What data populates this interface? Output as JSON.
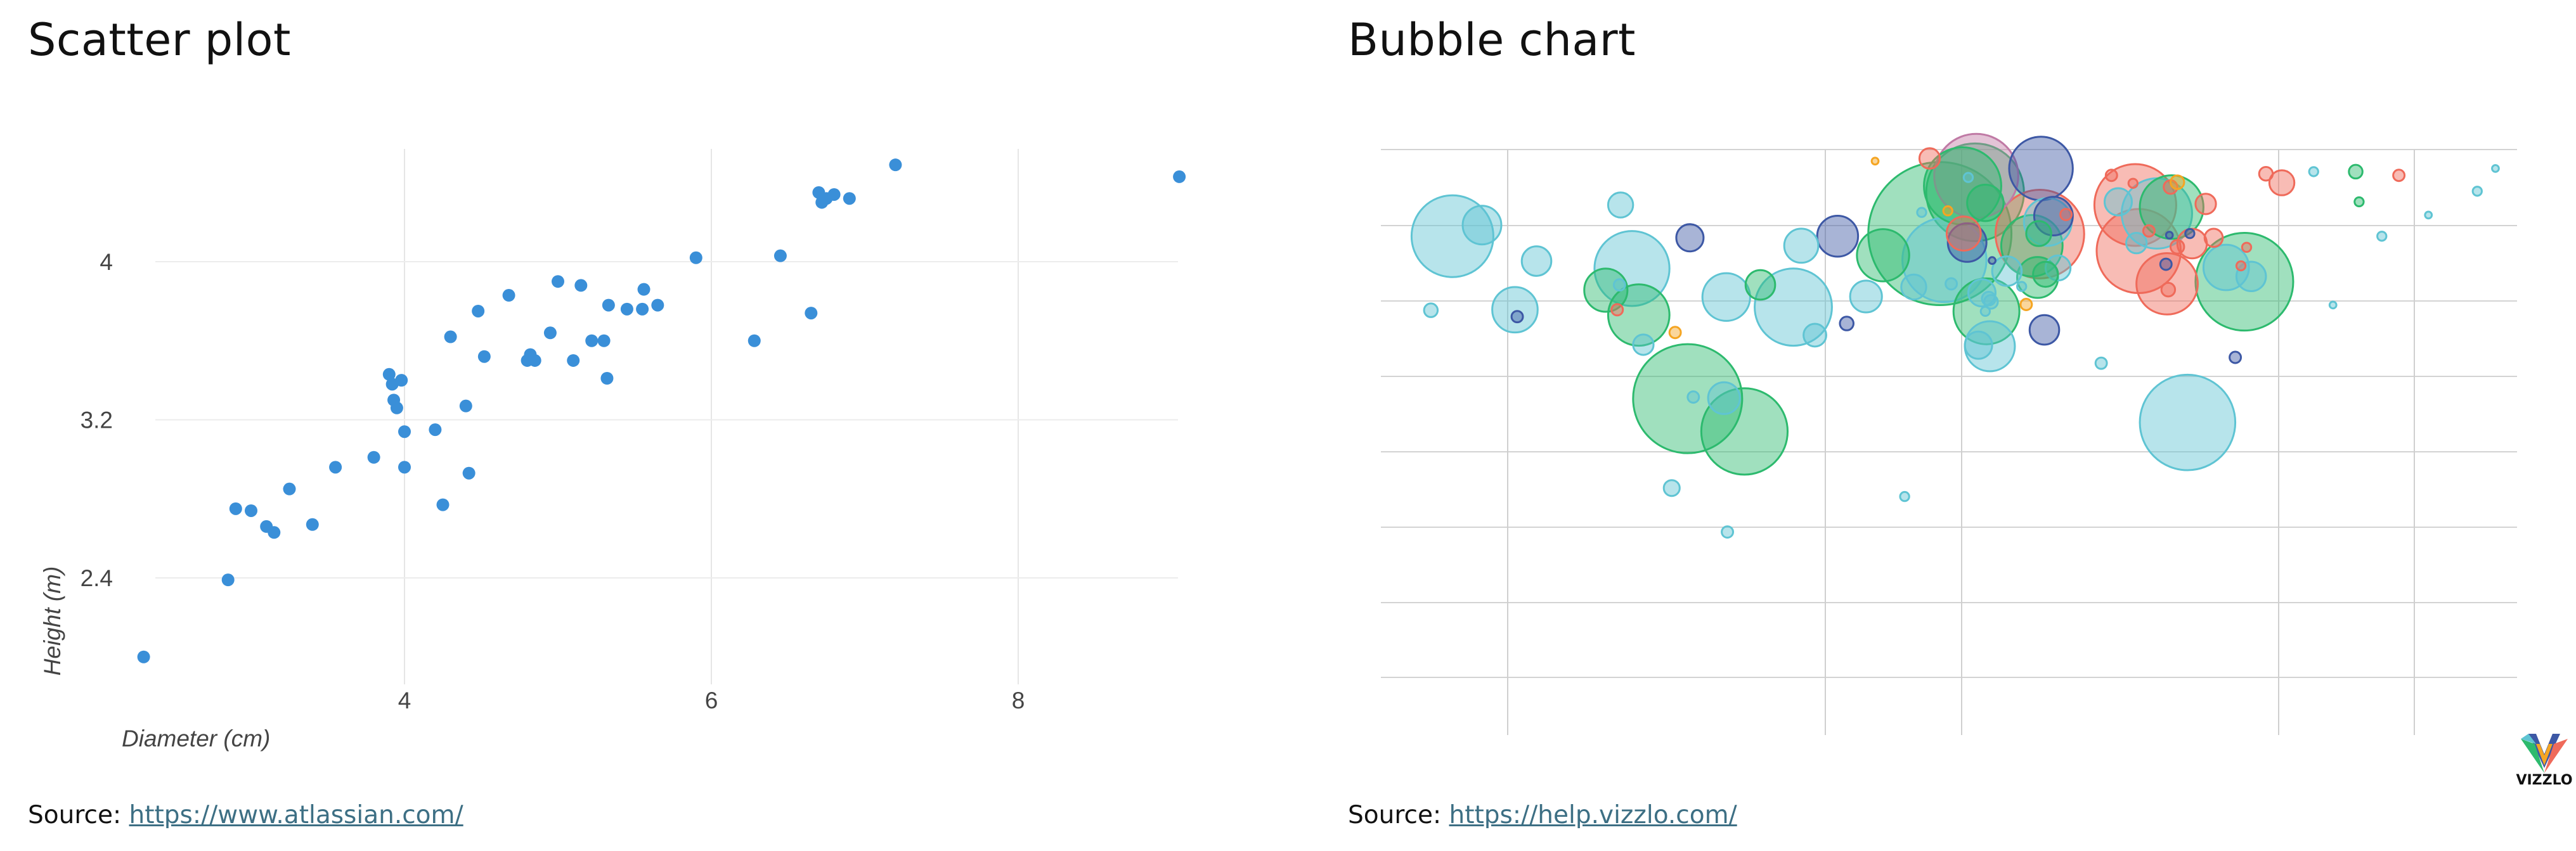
{
  "left_panel": {
    "title": "Scatter plot",
    "source_label": "Source:",
    "source_url": "https://www.atlassian.com/"
  },
  "right_panel": {
    "title": "Bubble chart",
    "source_label": "Source:",
    "source_url": "https://help.vizzlo.com/",
    "logo_text": "VIZZLO"
  },
  "chart_data": [
    {
      "type": "scatter",
      "title": "Scatter plot",
      "xlabel": "Diameter (cm)",
      "ylabel": "Height (m)",
      "xlim": [
        2.3,
        9.1
      ],
      "ylim": [
        1.88,
        4.6
      ],
      "xticks": [
        4,
        6,
        8
      ],
      "xtick_labels": [
        "4",
        "6",
        "8"
      ],
      "yticks": [
        2.4,
        3.2,
        4
      ],
      "ytick_labels": [
        "2.4",
        "3.2",
        "4"
      ],
      "grid": true,
      "color": "#3a8fd8",
      "points": [
        [
          2.3,
          2.0
        ],
        [
          2.85,
          2.39
        ],
        [
          2.9,
          2.75
        ],
        [
          3.0,
          2.74
        ],
        [
          3.1,
          2.66
        ],
        [
          3.15,
          2.63
        ],
        [
          3.25,
          2.85
        ],
        [
          3.4,
          2.67
        ],
        [
          3.55,
          2.96
        ],
        [
          3.8,
          3.01
        ],
        [
          3.9,
          3.43
        ],
        [
          3.92,
          3.38
        ],
        [
          3.93,
          3.3
        ],
        [
          3.95,
          3.26
        ],
        [
          3.98,
          3.4
        ],
        [
          4.0,
          3.14
        ],
        [
          4.0,
          2.96
        ],
        [
          4.2,
          3.15
        ],
        [
          4.25,
          2.77
        ],
        [
          4.3,
          3.62
        ],
        [
          4.4,
          3.27
        ],
        [
          4.42,
          2.93
        ],
        [
          4.48,
          3.75
        ],
        [
          4.52,
          3.52
        ],
        [
          4.68,
          3.83
        ],
        [
          4.8,
          3.5
        ],
        [
          4.82,
          3.53
        ],
        [
          4.85,
          3.5
        ],
        [
          4.95,
          3.64
        ],
        [
          5.0,
          3.9
        ],
        [
          5.1,
          3.5
        ],
        [
          5.15,
          3.88
        ],
        [
          5.22,
          3.6
        ],
        [
          5.3,
          3.6
        ],
        [
          5.32,
          3.41
        ],
        [
          5.33,
          3.78
        ],
        [
          5.45,
          3.76
        ],
        [
          5.55,
          3.76
        ],
        [
          5.56,
          3.86
        ],
        [
          5.65,
          3.78
        ],
        [
          5.9,
          4.02
        ],
        [
          6.28,
          3.6
        ],
        [
          6.45,
          4.03
        ],
        [
          6.65,
          3.74
        ],
        [
          6.7,
          4.35
        ],
        [
          6.72,
          4.3
        ],
        [
          6.75,
          4.32
        ],
        [
          6.8,
          4.34
        ],
        [
          6.9,
          4.32
        ],
        [
          7.2,
          4.49
        ],
        [
          9.05,
          4.43
        ]
      ]
    },
    {
      "type": "scatter",
      "title": "Bubble chart",
      "xlabel": "",
      "ylabel": "",
      "xlim": [
        0,
        100
      ],
      "ylim": [
        0,
        100
      ],
      "grid": true,
      "tick_labels_shown": false,
      "colors": {
        "teal": "#5fc4d3",
        "green": "#2dba6e",
        "red": "#ef6a5a",
        "purple": "#c07aa5",
        "navy": "#3d58a5",
        "orange": "#f5a522"
      },
      "bubbles": [
        [
          23.1,
          63.0,
          0.9,
          "teal"
        ],
        [
          48.3,
          98.2,
          0.9,
          "red"
        ],
        [
          66.5,
          82.2,
          0.9,
          "teal"
        ],
        [
          27.2,
          83.2,
          1.2,
          "navy"
        ],
        [
          64.9,
          90.0,
          1.2,
          "teal"
        ],
        [
          53.7,
          71.1,
          0.6,
          "teal"
        ],
        [
          47.6,
          88.0,
          0.4,
          "teal"
        ],
        [
          25.6,
          35.9,
          0.7,
          "teal"
        ],
        [
          19.8,
          73.3,
          1.9,
          "green"
        ],
        [
          49.2,
          84.0,
          6.3,
          "green"
        ],
        [
          33.4,
          74.3,
          1.3,
          "green"
        ],
        [
          71.0,
          48.3,
          4.2,
          "teal"
        ],
        [
          27.0,
          52.8,
          4.8,
          "green"
        ],
        [
          53.3,
          69.3,
          2.9,
          "green"
        ],
        [
          8.9,
          85.6,
          1.7,
          "teal"
        ],
        [
          69.2,
          74.5,
          2.7,
          "red"
        ],
        [
          76.0,
          74.9,
          4.3,
          "green"
        ],
        [
          69.6,
          89.0,
          2.8,
          "green"
        ],
        [
          43.5,
          97.7,
          0.3,
          "orange"
        ],
        [
          22.7,
          68.6,
          2.7,
          "green"
        ],
        [
          4.4,
          69.5,
          0.6,
          "teal"
        ],
        [
          69.4,
          83.7,
          0.3,
          "navy"
        ],
        [
          52.3,
          91.8,
          4.3,
          "green"
        ],
        [
          22.1,
          77.4,
          3.3,
          "teal"
        ],
        [
          6.3,
          83.5,
          3.6,
          "teal"
        ],
        [
          55.1,
          76.9,
          1.3,
          "teal"
        ],
        [
          21.1,
          89.4,
          1.1,
          "teal"
        ],
        [
          58.7,
          86.2,
          2.1,
          "teal"
        ],
        [
          57.8,
          75.7,
          1.8,
          "green"
        ],
        [
          36.3,
          70.1,
          3.4,
          "teal"
        ],
        [
          11.8,
          69.6,
          2.0,
          "teal"
        ],
        [
          30.2,
          52.9,
          1.4,
          "teal"
        ],
        [
          27.5,
          53.1,
          0.5,
          "teal"
        ],
        [
          13.7,
          78.8,
          1.3,
          "teal"
        ],
        [
          21.0,
          74.3,
          0.5,
          "teal"
        ],
        [
          66.4,
          89.4,
          3.6,
          "red"
        ],
        [
          53.2,
          89.8,
          1.6,
          "green"
        ],
        [
          52.4,
          94.9,
          3.7,
          "purple"
        ],
        [
          59.2,
          87.3,
          1.7,
          "navy"
        ],
        [
          53.5,
          71.7,
          0.6,
          "teal"
        ],
        [
          56.8,
          70.6,
          0.5,
          "orange"
        ],
        [
          58.1,
          96.3,
          2.8,
          "navy"
        ],
        [
          30.4,
          72.0,
          2.1,
          "teal"
        ],
        [
          49.6,
          79.0,
          3.7,
          "teal"
        ],
        [
          42.7,
          72.1,
          1.4,
          "teal"
        ],
        [
          46.1,
          34.3,
          0.4,
          "teal"
        ],
        [
          58.0,
          83.9,
          3.9,
          "red"
        ],
        [
          52.9,
          72.8,
          1.2,
          "teal"
        ],
        [
          69.3,
          73.4,
          0.6,
          "red"
        ],
        [
          68.3,
          87.8,
          3.1,
          "teal"
        ],
        [
          60.3,
          87.6,
          0.5,
          "red"
        ],
        [
          37.0,
          81.7,
          1.5,
          "teal"
        ],
        [
          40.2,
          83.5,
          1.8,
          "navy"
        ],
        [
          30.5,
          27.6,
          0.5,
          "teal"
        ],
        [
          57.3,
          81.7,
          2.7,
          "green"
        ],
        [
          51.6,
          82.3,
          1.7,
          "navy"
        ],
        [
          44.2,
          79.9,
          2.3,
          "green"
        ],
        [
          51.2,
          93.0,
          3.4,
          "green"
        ],
        [
          66.7,
          80.7,
          3.7,
          "red"
        ],
        [
          51.3,
          84.0,
          1.5,
          "red"
        ],
        [
          59.6,
          77.5,
          1.1,
          "teal"
        ],
        [
          50.2,
          74.5,
          0.5,
          "teal"
        ],
        [
          46.9,
          73.9,
          1.1,
          "teal"
        ],
        [
          58.5,
          76.3,
          1.1,
          "green"
        ],
        [
          57.9,
          84.0,
          1.1,
          "green"
        ],
        [
          32.0,
          46.6,
          3.8,
          "green"
        ],
        [
          74.4,
          77.6,
          2.0,
          "teal"
        ],
        [
          76.6,
          75.9,
          1.3,
          "teal"
        ],
        [
          38.2,
          64.8,
          1.0,
          "teal"
        ],
        [
          41.0,
          67.0,
          0.6,
          "navy"
        ],
        [
          52.6,
          62.9,
          1.2,
          "teal"
        ],
        [
          58.4,
          65.8,
          1.3,
          "navy"
        ],
        [
          71.4,
          82.1,
          1.3,
          "red"
        ],
        [
          49.9,
          88.3,
          0.4,
          "orange"
        ],
        [
          75.2,
          60.6,
          0.5,
          "navy"
        ],
        [
          25.9,
          65.3,
          0.5,
          "orange"
        ],
        [
          20.8,
          69.6,
          0.5,
          "red"
        ],
        [
          53.8,
          78.9,
          0.3,
          "navy"
        ],
        [
          53.6,
          62.7,
          2.2,
          "teal"
        ],
        [
          12.0,
          68.3,
          0.5,
          "navy"
        ],
        [
          56.4,
          74.0,
          0.4,
          "teal"
        ],
        [
          63.4,
          59.5,
          0.5,
          "teal"
        ],
        [
          69.5,
          92.8,
          0.6,
          "red"
        ],
        [
          71.2,
          84.0,
          0.4,
          "navy"
        ],
        [
          53.2,
          69.3,
          0.4,
          "teal"
        ],
        [
          51.7,
          94.6,
          0.4,
          "teal"
        ],
        [
          73.3,
          83.2,
          0.8,
          "red"
        ],
        [
          69.1,
          78.2,
          0.5,
          "navy"
        ],
        [
          67.6,
          84.5,
          0.5,
          "red"
        ],
        [
          70.1,
          81.5,
          0.6,
          "red"
        ],
        [
          76.2,
          81.4,
          0.4,
          "red"
        ],
        [
          66.2,
          93.5,
          0.4,
          "red"
        ],
        [
          70.1,
          93.7,
          0.6,
          "orange"
        ],
        [
          64.3,
          95.0,
          0.5,
          "red"
        ],
        [
          75.7,
          77.9,
          0.4,
          "red"
        ],
        [
          72.6,
          89.6,
          0.9,
          "red"
        ],
        [
          79.3,
          93.6,
          1.1,
          "red"
        ],
        [
          77.9,
          95.3,
          0.6,
          "red"
        ],
        [
          83.8,
          70.5,
          0.3,
          "teal"
        ],
        [
          85.8,
          95.7,
          0.6,
          "green"
        ],
        [
          88.1,
          83.5,
          0.4,
          "teal"
        ],
        [
          92.2,
          87.5,
          0.3,
          "teal"
        ],
        [
          96.5,
          92.0,
          0.4,
          "teal"
        ],
        [
          98.1,
          96.3,
          0.3,
          "teal"
        ],
        [
          86.1,
          90.0,
          0.4,
          "green"
        ],
        [
          82.1,
          95.7,
          0.4,
          "teal"
        ],
        [
          89.6,
          95.0,
          0.5,
          "red"
        ]
      ]
    }
  ]
}
